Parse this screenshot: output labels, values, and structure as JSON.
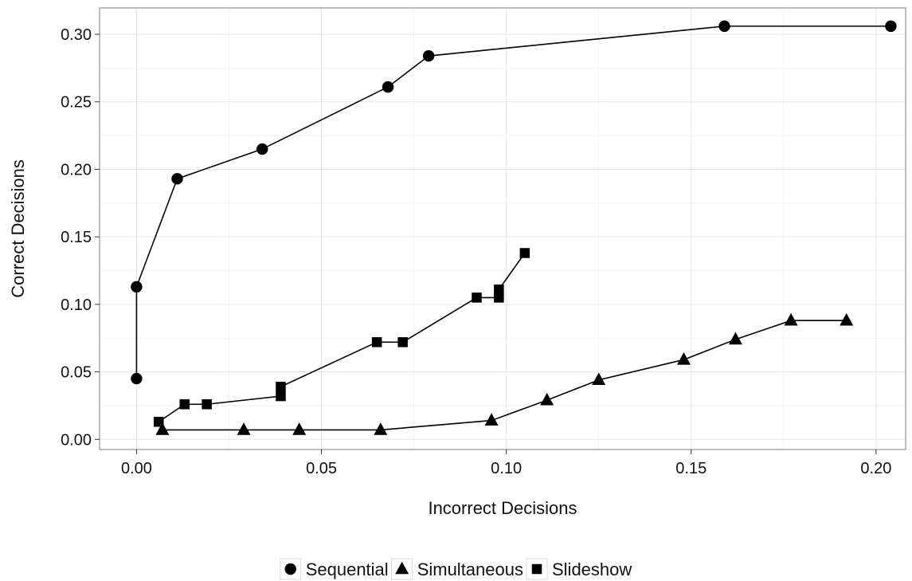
{
  "chart_data": {
    "type": "line",
    "xlabel": "Incorrect Decisions",
    "ylabel": "Correct Decisions",
    "xlim": [
      -0.01,
      0.208
    ],
    "ylim": [
      -0.0075,
      0.3195
    ],
    "x_ticks": [
      0.0,
      0.05,
      0.1,
      0.15,
      0.2
    ],
    "x_tick_labels": [
      "0.00",
      "0.05",
      "0.10",
      "0.15",
      "0.20"
    ],
    "y_ticks": [
      0.0,
      0.05,
      0.1,
      0.15,
      0.2,
      0.25,
      0.3
    ],
    "y_tick_labels": [
      "0.00",
      "0.05",
      "0.10",
      "0.15",
      "0.20",
      "0.25",
      "0.30"
    ],
    "grid": true,
    "legend_position": "bottom",
    "series": [
      {
        "name": "Sequential",
        "marker": "circle",
        "color": "#000000",
        "x": [
          0.0,
          0.0,
          0.011,
          0.034,
          0.068,
          0.079,
          0.159,
          0.204
        ],
        "y": [
          0.045,
          0.113,
          0.193,
          0.215,
          0.261,
          0.284,
          0.306,
          0.306
        ]
      },
      {
        "name": "Simultaneous",
        "marker": "triangle",
        "color": "#000000",
        "x": [
          0.007,
          0.029,
          0.044,
          0.066,
          0.096,
          0.111,
          0.125,
          0.148,
          0.162,
          0.177,
          0.192
        ],
        "y": [
          0.007,
          0.007,
          0.007,
          0.007,
          0.014,
          0.029,
          0.044,
          0.059,
          0.074,
          0.088,
          0.088
        ]
      },
      {
        "name": "Slideshow",
        "marker": "square",
        "color": "#000000",
        "x": [
          0.006,
          0.013,
          0.019,
          0.039,
          0.039,
          0.065,
          0.072,
          0.092,
          0.098,
          0.098,
          0.105
        ],
        "y": [
          0.013,
          0.026,
          0.026,
          0.032,
          0.039,
          0.072,
          0.072,
          0.105,
          0.105,
          0.111,
          0.138
        ]
      }
    ]
  }
}
